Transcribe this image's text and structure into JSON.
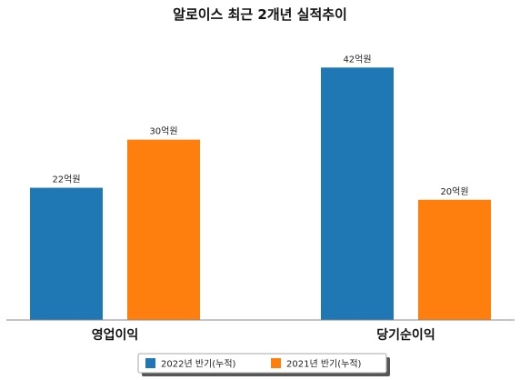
{
  "chart_data": {
    "type": "bar",
    "title": "알로이스 최근 2개년 실적추이",
    "categories": [
      "영업이익",
      "당기순이익"
    ],
    "series": [
      {
        "name": "2022년 반기(누적)",
        "values": [
          22,
          42
        ],
        "labels": [
          "22억원",
          "42억원"
        ],
        "color": "#1f77b4"
      },
      {
        "name": "2021년 반기(누적)",
        "values": [
          30,
          20
        ],
        "labels": [
          "30억원",
          "20억원"
        ],
        "color": "#ff7f0e"
      }
    ],
    "ylim": [
      0,
      49
    ],
    "grid": false,
    "legend_position": "bottom-center",
    "xlabel": "",
    "ylabel": ""
  }
}
